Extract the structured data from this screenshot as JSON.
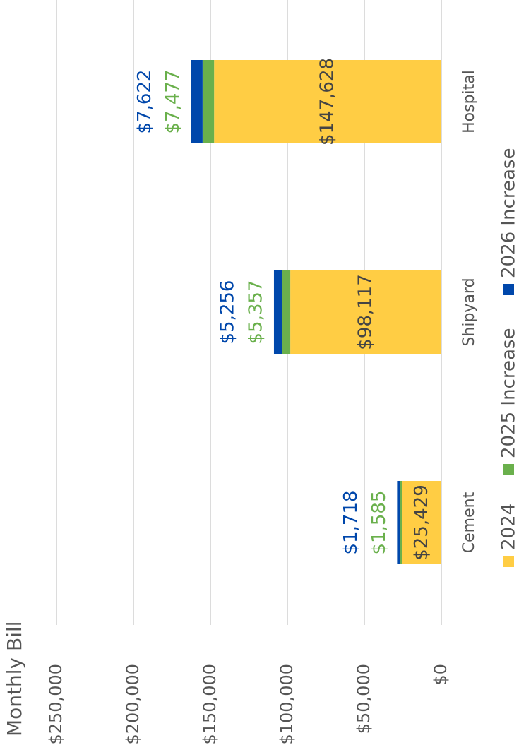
{
  "chart_data": {
    "type": "stacked_bar",
    "title": "Monthly Bill",
    "categories": [
      "Cement",
      "Shipyard",
      "Hospital"
    ],
    "series": [
      {
        "name": "2024",
        "color": "#ffcd44",
        "values": [
          25429,
          98117,
          147628
        ],
        "value_labels": [
          "$25,429",
          "$98,117",
          "$147,628"
        ]
      },
      {
        "name": "2025 Increase",
        "color": "#6ab04c",
        "values": [
          1585,
          5357,
          7477
        ],
        "value_labels": [
          "$1,585",
          "$5,357",
          "$7,477"
        ]
      },
      {
        "name": "2026 Increase",
        "color": "#0047ab",
        "values": [
          1718,
          5256,
          7622
        ],
        "value_labels": [
          "$1,718",
          "$5,256",
          "$7,622"
        ]
      }
    ],
    "ylim": [
      0,
      250000
    ],
    "yticks": [
      {
        "value": 0,
        "label": "$0"
      },
      {
        "value": 50000,
        "label": "$50,000"
      },
      {
        "value": 100000,
        "label": "$100,000"
      },
      {
        "value": 150000,
        "label": "$150,000"
      },
      {
        "value": 200000,
        "label": "$200,000"
      },
      {
        "value": 250000,
        "label": "$250,000"
      }
    ],
    "grid": true,
    "legend": "bottom"
  }
}
